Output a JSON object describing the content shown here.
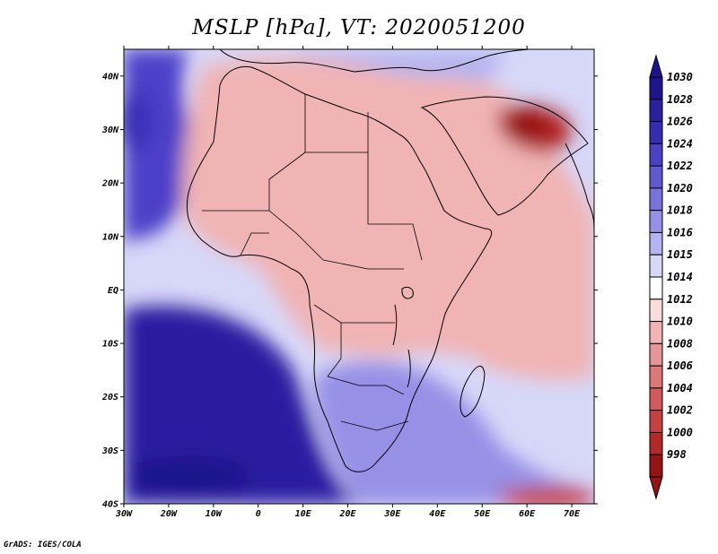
{
  "title": "MSLP [hPa], VT: 2020051200",
  "credit": "GrADS: IGES/COLA",
  "map": {
    "lon_range": [
      -30,
      75
    ],
    "lat_range": [
      -40,
      45
    ],
    "lat_ticks": [
      {
        "value": 40,
        "label": "40N"
      },
      {
        "value": 30,
        "label": "30N"
      },
      {
        "value": 20,
        "label": "20N"
      },
      {
        "value": 10,
        "label": "10N"
      },
      {
        "value": 0,
        "label": "EQ"
      },
      {
        "value": -10,
        "label": "10S"
      },
      {
        "value": -20,
        "label": "20S"
      },
      {
        "value": -30,
        "label": "30S"
      },
      {
        "value": -40,
        "label": "40S"
      }
    ],
    "lon_ticks": [
      {
        "value": -30,
        "label": "30W"
      },
      {
        "value": -20,
        "label": "20W"
      },
      {
        "value": -10,
        "label": "10W"
      },
      {
        "value": 0,
        "label": "0"
      },
      {
        "value": 10,
        "label": "10E"
      },
      {
        "value": 20,
        "label": "20E"
      },
      {
        "value": 30,
        "label": "30E"
      },
      {
        "value": 40,
        "label": "40E"
      },
      {
        "value": 50,
        "label": "50E"
      },
      {
        "value": 60,
        "label": "60E"
      },
      {
        "value": 70,
        "label": "70E"
      }
    ]
  },
  "colorbar": {
    "levels": [
      {
        "label": "1030",
        "color": "#1e148c"
      },
      {
        "label": "1028",
        "color": "#2a1fa0"
      },
      {
        "label": "1026",
        "color": "#372db4"
      },
      {
        "label": "1024",
        "color": "#4b41c8"
      },
      {
        "label": "1022",
        "color": "#5f5ad2"
      },
      {
        "label": "1020",
        "color": "#7873dc"
      },
      {
        "label": "1018",
        "color": "#9691e6"
      },
      {
        "label": "1016",
        "color": "#b4b4f0"
      },
      {
        "label": "1015",
        "color": "#d7d7f8"
      },
      {
        "label": "1014",
        "color": "#ffffff"
      },
      {
        "label": "1012",
        "color": "#fadcdc"
      },
      {
        "label": "1010",
        "color": "#f0b4b4"
      },
      {
        "label": "1008",
        "color": "#e69696"
      },
      {
        "label": "1006",
        "color": "#dc7878"
      },
      {
        "label": "1004",
        "color": "#d25a5a"
      },
      {
        "label": "1002",
        "color": "#c84141"
      },
      {
        "label": "1000",
        "color": "#b42828"
      },
      {
        "label": "998",
        "color": "#961414"
      }
    ],
    "top_arrow_color": "#1e148c",
    "bottom_arrow_color": "#961414"
  },
  "fields": {
    "ocean_background": "#d7d7f8",
    "regions": [
      {
        "name": "north-atlantic-high",
        "color": "#4b41c8"
      },
      {
        "name": "south-atlantic-high",
        "color": "#2a1fa0"
      },
      {
        "name": "africa-low",
        "color": "#f0b4b4"
      },
      {
        "name": "arabia-low",
        "color": "#b42828"
      },
      {
        "name": "indian-ocean",
        "color": "#f0b4b4"
      },
      {
        "name": "southern-africa-high",
        "color": "#9691e6"
      },
      {
        "name": "mediterranean",
        "color": "#b4b4f0"
      }
    ]
  }
}
